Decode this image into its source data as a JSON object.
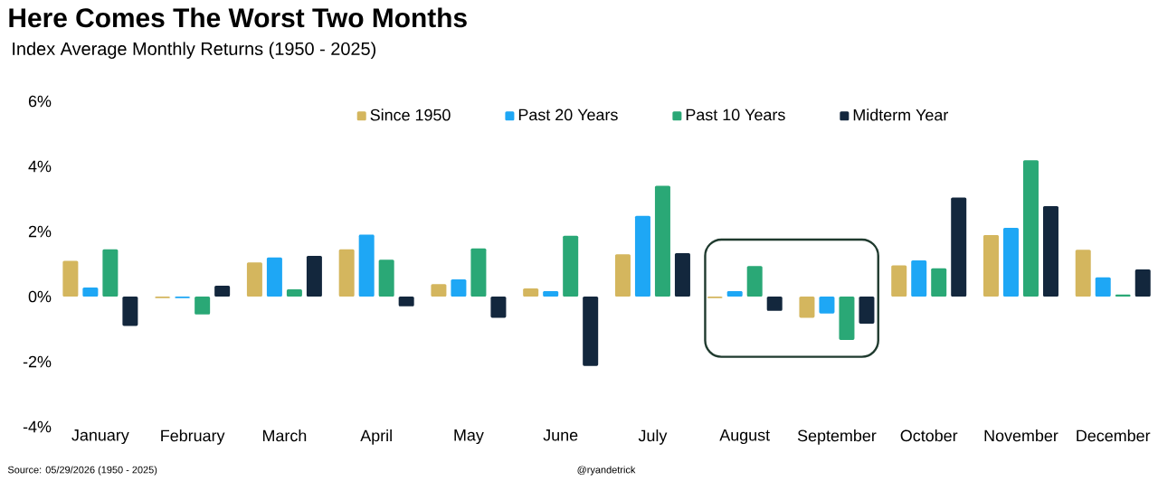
{
  "chart_data": {
    "type": "bar",
    "title": "Here Comes The Worst Two Months",
    "subtitle": "Index Average Monthly Returns (1950 - 2025)",
    "categories": [
      "January",
      "February",
      "March",
      "April",
      "May",
      "June",
      "July",
      "August",
      "September",
      "October",
      "November",
      "December"
    ],
    "series": [
      {
        "name": "Since 1950",
        "color": "#d4b65e",
        "values": [
          1.1,
          -0.05,
          1.05,
          1.45,
          0.38,
          0.25,
          1.3,
          -0.05,
          -0.65,
          0.96,
          1.89,
          1.44
        ]
      },
      {
        "name": "Past 20 Years",
        "color": "#1ea7f5",
        "values": [
          0.28,
          -0.05,
          1.2,
          1.9,
          0.53,
          0.17,
          2.48,
          0.17,
          -0.52,
          1.11,
          2.11,
          0.59
        ]
      },
      {
        "name": "Past 10 Years",
        "color": "#2aa876",
        "values": [
          1.45,
          -0.55,
          0.22,
          1.13,
          1.48,
          1.87,
          3.4,
          0.94,
          -1.33,
          0.87,
          4.19,
          0.06
        ]
      },
      {
        "name": "Midterm Year",
        "color": "#13273d",
        "values": [
          -0.9,
          0.33,
          1.25,
          -0.3,
          -0.65,
          -2.13,
          1.33,
          -0.44,
          -0.83,
          3.04,
          2.78,
          0.83
        ]
      }
    ],
    "ylim": [
      -4,
      6
    ],
    "yticks": [
      {
        "value": -4,
        "label": "-4%"
      },
      {
        "value": -2,
        "label": "-2%"
      },
      {
        "value": 0,
        "label": "0%"
      },
      {
        "value": 2,
        "label": "2%"
      },
      {
        "value": 4,
        "label": "4%"
      },
      {
        "value": 6,
        "label": "6%"
      }
    ],
    "legend": "top",
    "grid": false,
    "annotations": [
      "Source: 05/29/2026 (1950 - 2025)",
      "@ryandetrick"
    ]
  }
}
